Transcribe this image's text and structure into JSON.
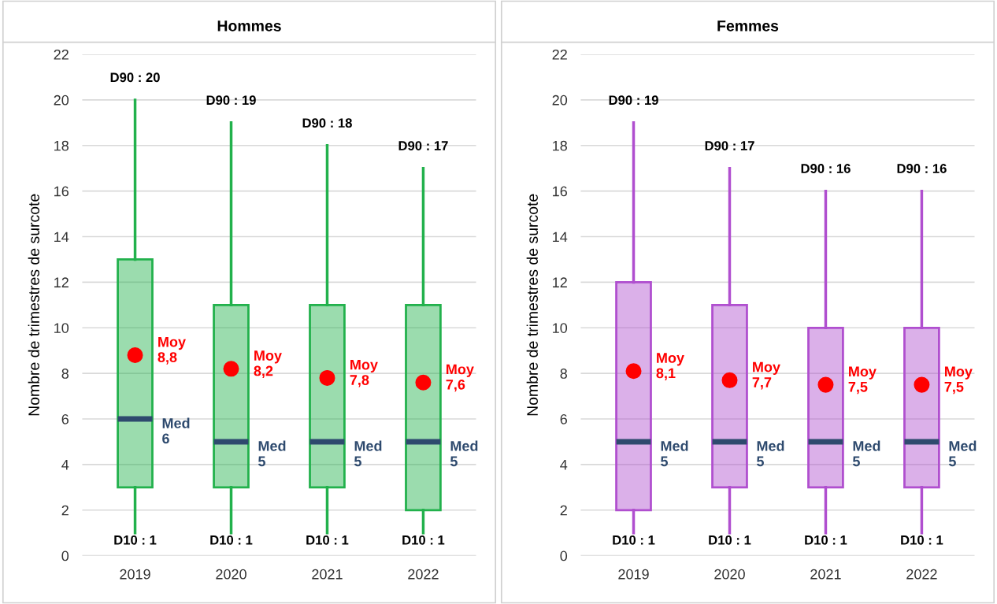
{
  "chart_data": [
    {
      "type": "box",
      "title": "Hommes",
      "ylabel": "Nombre de trimestres de surcote",
      "categories": [
        "2019",
        "2020",
        "2021",
        "2022"
      ],
      "ylim": [
        0,
        22
      ],
      "yticks": [
        0,
        2,
        4,
        6,
        8,
        10,
        12,
        14,
        16,
        18,
        20,
        22
      ],
      "grid": "y",
      "series": [
        {
          "type": "box",
          "color": "#22b14c",
          "boxes": [
            {
              "low": 1,
              "q1": 3,
              "median": 6,
              "q3": 13,
              "high": 20
            },
            {
              "low": 1,
              "q1": 3,
              "median": 5,
              "q3": 11,
              "high": 19
            },
            {
              "low": 1,
              "q1": 3,
              "median": 5,
              "q3": 11,
              "high": 18
            },
            {
              "low": 1,
              "q1": 2,
              "median": 5,
              "q3": 11,
              "high": 17
            }
          ]
        },
        {
          "type": "scatter",
          "color": "#ff0000",
          "values": [
            8.8,
            8.2,
            7.8,
            7.6
          ],
          "marker": "circle"
        }
      ],
      "annotations": [
        {
          "text": "D90 : 20",
          "x": "2019",
          "y": 20
        },
        {
          "text": "D90 : 19",
          "x": "2020",
          "y": 19
        },
        {
          "text": "D90 : 18",
          "x": "2021",
          "y": 18
        },
        {
          "text": "D90 : 17",
          "x": "2022",
          "y": 17
        },
        {
          "text": "D10 : 1",
          "x": "2019",
          "y": 1
        },
        {
          "text": "D10 : 1",
          "x": "2020",
          "y": 1
        },
        {
          "text": "D10 : 1",
          "x": "2021",
          "y": 1
        },
        {
          "text": "D10 : 1",
          "x": "2022",
          "y": 1
        },
        {
          "text": "Moy\n8,8",
          "x": "2019",
          "y": 8.8
        },
        {
          "text": "Moy\n8,2",
          "x": "2020",
          "y": 8.2
        },
        {
          "text": "Moy\n7,8",
          "x": "2021",
          "y": 7.8
        },
        {
          "text": "Moy\n7,6",
          "x": "2022",
          "y": 7.6
        },
        {
          "text": "Med\n6",
          "x": "2019",
          "y": 6
        },
        {
          "text": "Med\n5",
          "x": "2020",
          "y": 5
        },
        {
          "text": "Med\n5",
          "x": "2021",
          "y": 5
        },
        {
          "text": "Med\n5",
          "x": "2022",
          "y": 5
        }
      ]
    },
    {
      "type": "box",
      "title": "Femmes",
      "ylabel": "Nombre de trimestres de surcote",
      "categories": [
        "2019",
        "2020",
        "2021",
        "2022"
      ],
      "ylim": [
        0,
        22
      ],
      "yticks": [
        0,
        2,
        4,
        6,
        8,
        10,
        12,
        14,
        16,
        18,
        20,
        22
      ],
      "grid": "y",
      "series": [
        {
          "type": "box",
          "color": "#b04fcf",
          "boxes": [
            {
              "low": 1,
              "q1": 2,
              "median": 5,
              "q3": 12,
              "high": 19
            },
            {
              "low": 1,
              "q1": 3,
              "median": 5,
              "q3": 11,
              "high": 17
            },
            {
              "low": 1,
              "q1": 3,
              "median": 5,
              "q3": 10,
              "high": 16
            },
            {
              "low": 1,
              "q1": 3,
              "median": 5,
              "q3": 10,
              "high": 16
            }
          ]
        },
        {
          "type": "scatter",
          "color": "#ff0000",
          "values": [
            8.1,
            7.7,
            7.5,
            7.5
          ],
          "marker": "circle"
        }
      ],
      "annotations": [
        {
          "text": "D90 : 19",
          "x": "2019",
          "y": 19
        },
        {
          "text": "D90 : 17",
          "x": "2020",
          "y": 17
        },
        {
          "text": "D90 : 16",
          "x": "2021",
          "y": 16
        },
        {
          "text": "D90 : 16",
          "x": "2022",
          "y": 16
        },
        {
          "text": "D10 : 1",
          "x": "2019",
          "y": 1
        },
        {
          "text": "D10 : 1",
          "x": "2020",
          "y": 1
        },
        {
          "text": "D10 : 1",
          "x": "2021",
          "y": 1
        },
        {
          "text": "D10 : 1",
          "x": "2022",
          "y": 1
        },
        {
          "text": "Moy\n8,1",
          "x": "2019",
          "y": 8.1
        },
        {
          "text": "Moy\n7,7",
          "x": "2020",
          "y": 7.7
        },
        {
          "text": "Moy\n7,5",
          "x": "2021",
          "y": 7.5
        },
        {
          "text": "Moy\n7,5",
          "x": "2022",
          "y": 7.5
        },
        {
          "text": "Med\n5",
          "x": "2019",
          "y": 5
        },
        {
          "text": "Med\n5",
          "x": "2020",
          "y": 5
        },
        {
          "text": "Med\n5",
          "x": "2021",
          "y": 5
        },
        {
          "text": "Med\n5",
          "x": "2022",
          "y": 5
        }
      ]
    }
  ]
}
